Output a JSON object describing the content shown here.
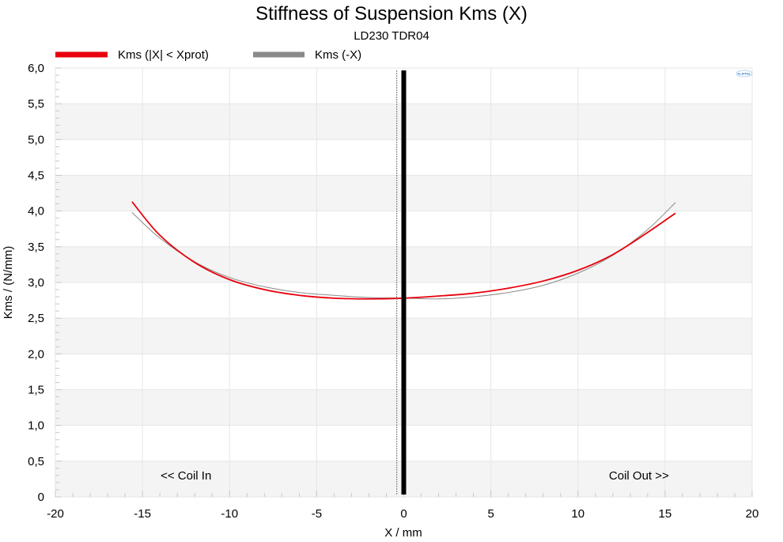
{
  "chart_data": {
    "type": "line",
    "title": "Stiffness of Suspension Kms (X)",
    "subtitle": "LD230 TDR04",
    "xlabel": "X / mm",
    "ylabel": "Kms / (N/mm)",
    "xlim": [
      -20,
      20
    ],
    "ylim": [
      0,
      6
    ],
    "x_ticks": [
      -20,
      -15,
      -10,
      -5,
      0,
      5,
      10,
      15,
      20
    ],
    "x_tick_labels": [
      "-20",
      "-15",
      "-10",
      "-5",
      "0",
      "5",
      "10",
      "15",
      "20"
    ],
    "y_ticks": [
      0,
      0.5,
      1,
      1.5,
      2,
      2.5,
      3,
      3.5,
      4,
      4.5,
      5,
      5.5,
      6
    ],
    "y_tick_labels": [
      "0",
      "0,5",
      "1,0",
      "1,5",
      "2,0",
      "2,5",
      "3,0",
      "3,5",
      "4,0",
      "4,5",
      "5,0",
      "5,5",
      "6,0"
    ],
    "grid": true,
    "legend_position": "top-left",
    "series": [
      {
        "name": "Kms (|X| < Xprot)",
        "color": "#e8000b",
        "x": [
          -15.6,
          -14,
          -12,
          -10,
          -8,
          -6,
          -4,
          -2,
          0,
          2,
          4,
          6,
          8,
          10,
          12,
          14,
          15.6
        ],
        "y": [
          4.13,
          3.66,
          3.28,
          3.04,
          2.9,
          2.82,
          2.78,
          2.77,
          2.78,
          2.81,
          2.85,
          2.92,
          3.02,
          3.17,
          3.39,
          3.7,
          3.97
        ]
      },
      {
        "name": "Kms (-X)",
        "color": "#8a8a8a",
        "x": [
          -15.6,
          -14,
          -12,
          -10,
          -8,
          -6,
          -4,
          -2,
          0,
          2,
          4,
          6,
          8,
          10,
          12,
          14,
          15.6
        ],
        "y": [
          3.98,
          3.62,
          3.29,
          3.07,
          2.94,
          2.86,
          2.82,
          2.79,
          2.78,
          2.77,
          2.8,
          2.86,
          2.96,
          3.13,
          3.38,
          3.74,
          4.12
        ]
      }
    ],
    "marker_line": {
      "x": 0,
      "color": "#000000"
    },
    "secondary_line": {
      "x": -0.4,
      "color": "#777777"
    },
    "annotations": [
      {
        "text": "<< Coil In",
        "x": -12.5,
        "y": 0.3
      },
      {
        "text": "Coil Out >>",
        "x": 13.5,
        "y": 0.3
      }
    ]
  },
  "logo": {
    "text": "KLIPPEL",
    "color": "#3a7fc4"
  }
}
